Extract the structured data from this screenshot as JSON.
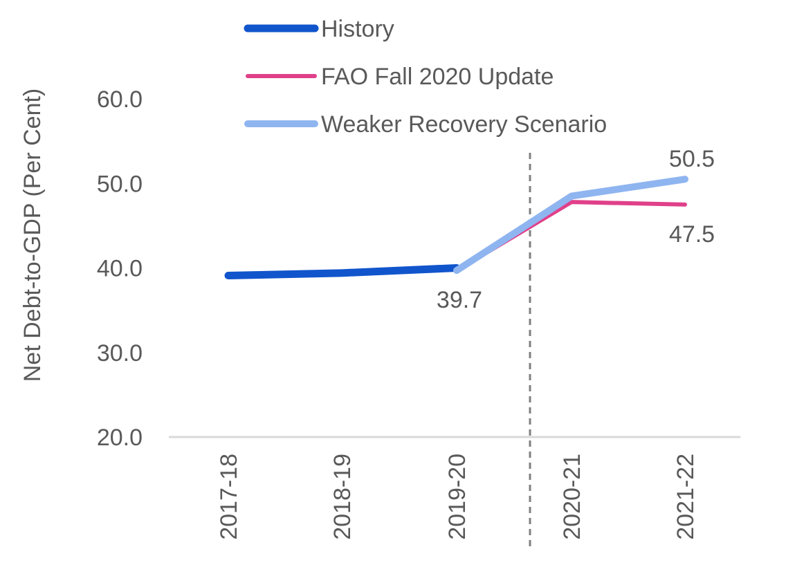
{
  "chart_data": {
    "type": "line",
    "title": "",
    "xlabel": "",
    "ylabel": "Net Debt-to-GDP (Per Cent)",
    "categories": [
      "2017-18",
      "2018-19",
      "2019-20",
      "2020-21",
      "2021-22"
    ],
    "ylim": [
      20,
      60
    ],
    "yticks": [
      "20.0",
      "30.0",
      "40.0",
      "50.0",
      "60.0"
    ],
    "grid": false,
    "legend_position": "top",
    "series": [
      {
        "name": "History",
        "color": "#1155CC",
        "values": [
          39.1,
          39.4,
          40.0,
          null,
          null
        ]
      },
      {
        "name": "FAO Fall 2020 Update",
        "color": "#E0408A",
        "values": [
          null,
          null,
          39.7,
          47.8,
          47.5
        ]
      },
      {
        "name": "Weaker Recovery Scenario",
        "color": "#8FB5F0",
        "values": [
          null,
          null,
          39.7,
          48.5,
          50.5
        ]
      }
    ],
    "annotations": [
      {
        "text": "39.7",
        "category": "2019-20",
        "value": 39.7,
        "placement": "below"
      },
      {
        "text": "47.5",
        "category": "2021-22",
        "value": 47.5,
        "placement": "below"
      },
      {
        "text": "50.5",
        "category": "2021-22",
        "value": 50.5,
        "placement": "above"
      }
    ],
    "divider_between": [
      "2019-20",
      "2020-21"
    ]
  }
}
